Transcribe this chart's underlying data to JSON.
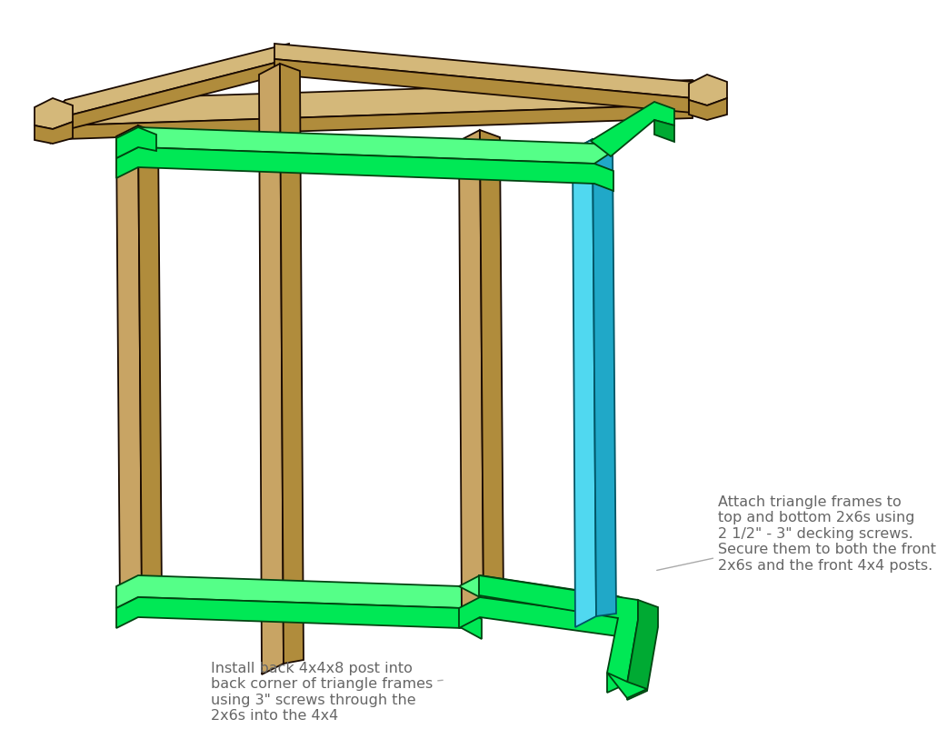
{
  "bg_color": "#ffffff",
  "wf": "#C8A464",
  "wf2": "#B08C3C",
  "wf3": "#D4B87A",
  "we": "#1A0A00",
  "gf": "#00E855",
  "gf2": "#00AA33",
  "gf3": "#55FF88",
  "ge": "#004411",
  "cf": "#50D8F0",
  "cf2": "#20A8C8",
  "cf3": "#90EEFF",
  "ce": "#005566",
  "ann_color": "#AAAAAA",
  "txt_color": "#666666",
  "label1": "Install back 4x4x8 post into\nback corner of triangle frames\nusing 3\" screws through the\n2x6s into the 4x4",
  "label2": "Attach triangle frames to\ntop and bottom 2x6s using\n2 1/2\" - 3\" decking screws.\nSecure them to both the front\n2x6s and the front 4x4 posts.",
  "figsize": [
    10.42,
    8.24
  ],
  "dpi": 100
}
